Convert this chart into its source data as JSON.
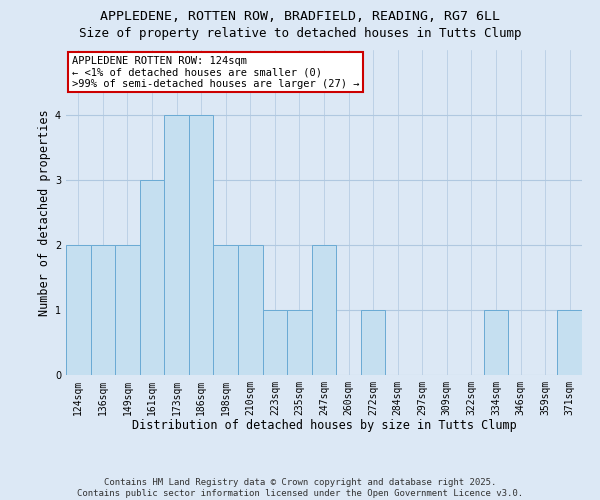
{
  "title_line1": "APPLEDENE, ROTTEN ROW, BRADFIELD, READING, RG7 6LL",
  "title_line2": "Size of property relative to detached houses in Tutts Clump",
  "xlabel": "Distribution of detached houses by size in Tutts Clump",
  "ylabel": "Number of detached properties",
  "categories": [
    "124sqm",
    "136sqm",
    "149sqm",
    "161sqm",
    "173sqm",
    "186sqm",
    "198sqm",
    "210sqm",
    "223sqm",
    "235sqm",
    "247sqm",
    "260sqm",
    "272sqm",
    "284sqm",
    "297sqm",
    "309sqm",
    "322sqm",
    "334sqm",
    "346sqm",
    "359sqm",
    "371sqm"
  ],
  "values": [
    2,
    2,
    2,
    3,
    4,
    4,
    2,
    2,
    1,
    1,
    2,
    0,
    1,
    0,
    0,
    0,
    0,
    1,
    0,
    0,
    1
  ],
  "bar_color": "#c5dff0",
  "bar_edgecolor": "#6aaad4",
  "ylim": [
    0,
    5
  ],
  "yticks": [
    0,
    1,
    2,
    3,
    4
  ],
  "annotation_text": "APPLEDENE ROTTEN ROW: 124sqm\n← <1% of detached houses are smaller (0)\n>99% of semi-detached houses are larger (27) →",
  "annotation_box_facecolor": "#ffffff",
  "annotation_border_color": "#cc0000",
  "footer_line1": "Contains HM Land Registry data © Crown copyright and database right 2025.",
  "footer_line2": "Contains public sector information licensed under the Open Government Licence v3.0.",
  "bg_color": "#dce8f5",
  "plot_bg_color": "#dce8f5",
  "grid_color": "#b0c8e0",
  "title_fontsize": 9.5,
  "subtitle_fontsize": 9,
  "axis_label_fontsize": 8.5,
  "tick_fontsize": 7,
  "annotation_fontsize": 7.5,
  "footer_fontsize": 6.5
}
